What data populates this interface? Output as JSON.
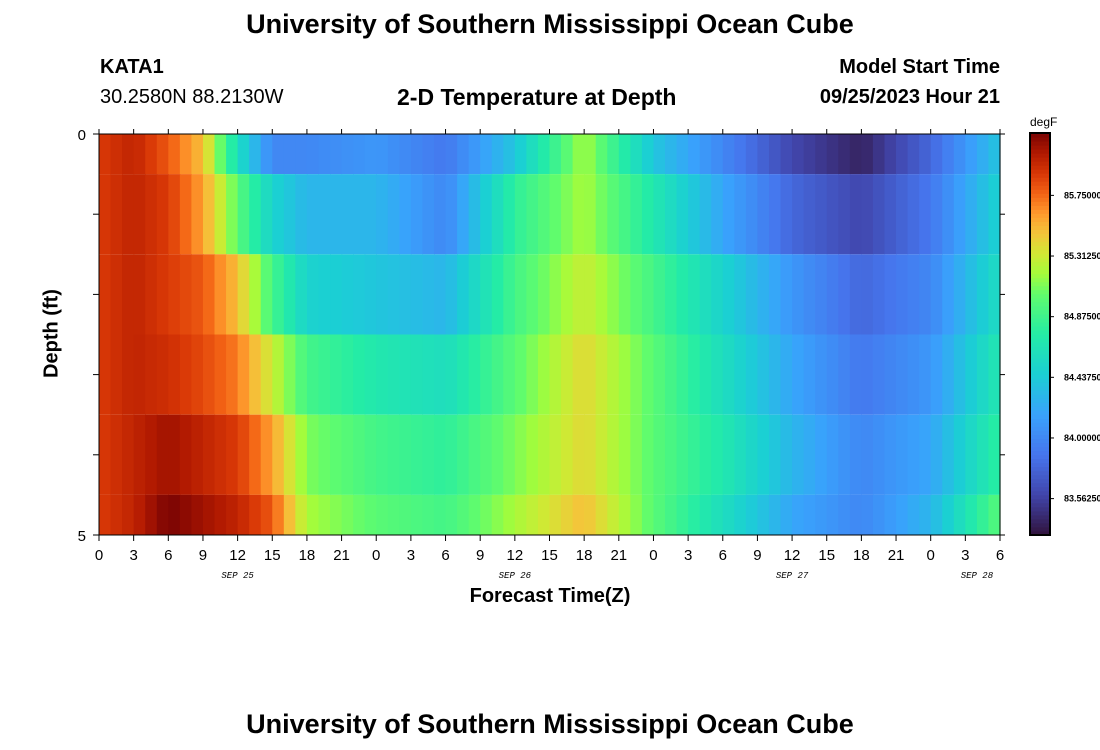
{
  "header": {
    "title": "University of Southern Mississippi Ocean Cube",
    "station": "KATA1",
    "coords": "30.2580N  88.2130W",
    "subtitle": "2-D Temperature at Depth",
    "model_label": "Model Start Time",
    "model_time": "09/25/2023 Hour 21"
  },
  "footer": {
    "title": "University of Southern Mississippi Ocean Cube"
  },
  "chart_data": {
    "type": "heatmap",
    "title": "2-D Temperature at Depth",
    "xlabel": "Forecast Time(Z)",
    "ylabel": "Depth (ft)",
    "y_ticks": [
      "0",
      "5"
    ],
    "ylim": [
      0,
      5
    ],
    "x_ticks": [
      "0",
      "3",
      "6",
      "9",
      "12",
      "15",
      "18",
      "21",
      "0",
      "3",
      "6",
      "9",
      "12",
      "15",
      "18",
      "21",
      "0",
      "3",
      "6",
      "9",
      "12",
      "15",
      "18",
      "21",
      "0",
      "3",
      "6"
    ],
    "date_labels": [
      "SEP 25",
      "SEP 26",
      "SEP 27",
      "SEP 28"
    ],
    "colorbar": {
      "unit": "degF",
      "ticks": [
        "85.75000",
        "85.31250",
        "84.87500",
        "84.43750",
        "84.00000",
        "83.56250"
      ],
      "range": [
        83.3,
        86.2
      ]
    },
    "time_keys_hours": [
      0,
      3,
      6,
      9,
      12,
      15,
      18,
      24,
      30,
      36,
      42,
      48,
      54,
      60,
      66,
      72,
      78
    ],
    "rows": [
      {
        "depth": "0 to 0.5 ft",
        "values": [
          85.9,
          86.0,
          85.8,
          85.5,
          84.6,
          84.0,
          84.0,
          84.1,
          83.9,
          84.4,
          85.2,
          84.4,
          84.0,
          83.6,
          83.4,
          83.8,
          84.4
        ]
      },
      {
        "depth": "0.5 to 1.5 ft",
        "values": [
          85.9,
          86.0,
          85.9,
          85.6,
          85.0,
          84.5,
          84.3,
          84.3,
          84.0,
          84.8,
          85.2,
          84.7,
          84.2,
          83.8,
          83.6,
          83.9,
          84.5
        ]
      },
      {
        "depth": "1.5 to 2.5 ft",
        "values": [
          85.9,
          86.0,
          85.9,
          85.8,
          85.5,
          84.9,
          84.5,
          84.4,
          84.3,
          84.9,
          85.3,
          84.9,
          84.5,
          84.1,
          83.8,
          84.0,
          84.6
        ]
      },
      {
        "depth": "2.5 to 3.5 ft",
        "values": [
          85.9,
          86.0,
          85.95,
          85.85,
          85.7,
          85.3,
          84.9,
          84.7,
          84.6,
          85.0,
          85.4,
          85.0,
          84.6,
          84.2,
          83.9,
          84.1,
          84.7
        ]
      },
      {
        "depth": "3.5 to 4.5 ft",
        "values": [
          85.9,
          86.0,
          86.1,
          86.0,
          85.9,
          85.6,
          85.1,
          84.9,
          84.8,
          85.1,
          85.4,
          85.0,
          84.7,
          84.3,
          84.0,
          84.2,
          84.8
        ]
      },
      {
        "depth": "4.5 to 5 ft",
        "values": [
          85.9,
          86.0,
          86.2,
          86.1,
          86.0,
          85.8,
          85.2,
          85.0,
          84.9,
          85.2,
          85.5,
          85.0,
          84.6,
          84.2,
          84.0,
          84.3,
          85.0
        ]
      }
    ]
  }
}
